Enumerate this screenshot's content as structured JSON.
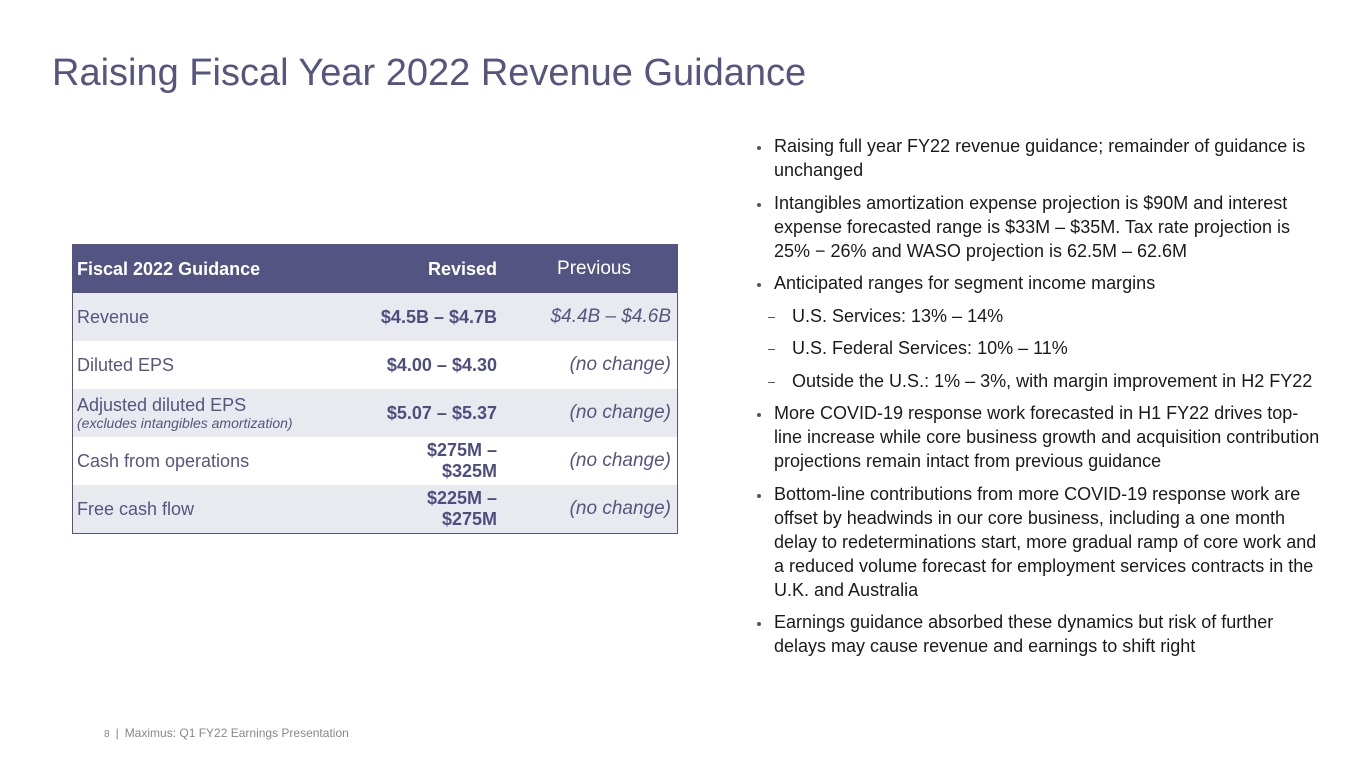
{
  "title": "Raising Fiscal Year 2022 Revenue Guidance",
  "table": {
    "header": [
      "Fiscal 2022 Guidance",
      "Revised",
      "Previous"
    ],
    "rows": [
      {
        "label": "Revenue",
        "revised": "$4.5B – $4.7B",
        "previous": "$4.4B – $4.6B"
      },
      {
        "label": "Diluted EPS",
        "revised": "$4.00 – $4.30",
        "previous": "(no change)"
      },
      {
        "label": "Adjusted diluted EPS",
        "note": "(excludes intangibles amortization)",
        "revised": "$5.07 – $5.37",
        "previous": "(no change)"
      },
      {
        "label": "Cash from operations",
        "revised": "$275M – $325M",
        "previous": "(no change)"
      },
      {
        "label": "Free cash flow",
        "revised": "$225M – $275M",
        "previous": "(no change)"
      }
    ]
  },
  "bullets": [
    {
      "level": 1,
      "text": "Raising full year FY22 revenue guidance; remainder of guidance is unchanged"
    },
    {
      "level": 1,
      "text": "Intangibles amortization expense projection is $90M and interest expense forecasted range is $33M – $35M. Tax rate projection is 25% − 26% and WASO projection is 62.5M – 62.6M"
    },
    {
      "level": 1,
      "text": "Anticipated ranges for segment income margins"
    },
    {
      "level": 2,
      "text": "U.S. Services: 13% – 14%"
    },
    {
      "level": 2,
      "text": "U.S. Federal Services: 10% – 11%"
    },
    {
      "level": 2,
      "text": "Outside the U.S.: 1% – 3%, with margin improvement in H2 FY22"
    },
    {
      "level": 1,
      "text": "More COVID-19 response work forecasted in H1 FY22 drives top-line increase while core business growth and acquisition contribution projections remain intact from previous guidance"
    },
    {
      "level": 1,
      "text": "Bottom-line contributions from more COVID-19 response work are offset by headwinds in our core business, including a one month delay to redeterminations start, more gradual ramp of core work and a reduced volume forecast for employment services contracts in the U.K. and Australia"
    },
    {
      "level": 1,
      "text": "Earnings guidance absorbed these dynamics but risk of further delays may cause revenue and earnings to shift right"
    }
  ],
  "footer": {
    "page": "8",
    "separator": "|",
    "text": "Maximus: Q1 FY22 Earnings Presentation"
  }
}
